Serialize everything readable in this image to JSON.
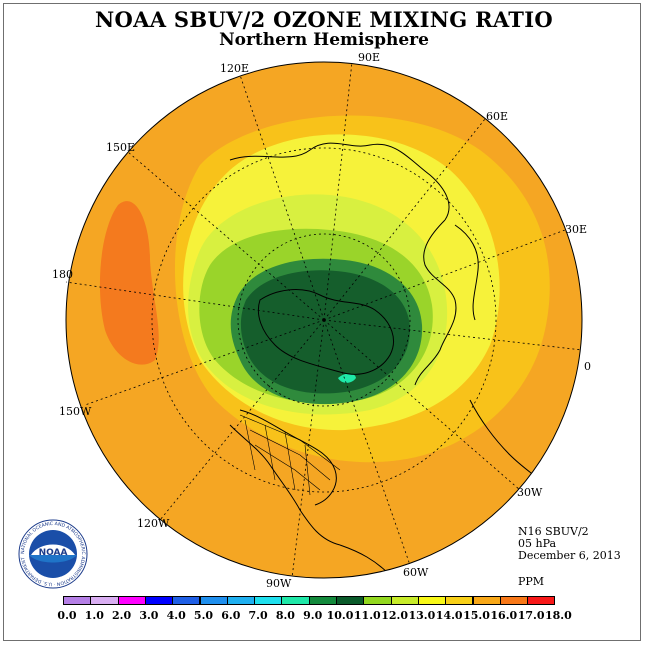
{
  "header": {
    "title": "NOAA SBUV/2 OZONE MIXING RATIO",
    "subtitle": "Northern Hemisphere"
  },
  "longitude_labels": [
    "90E",
    "60E",
    "30E",
    "0",
    "30W",
    "60W",
    "90W",
    "120W",
    "150W",
    "180",
    "150E",
    "120E"
  ],
  "info": {
    "satellite": "N16 SBUV/2",
    "level": "05 hPa",
    "date": "December 6, 2013",
    "units": "PPM"
  },
  "logo": {
    "text": "NOAA",
    "ring_text": "NATIONAL OCEANIC AND ATMOSPHERIC ADMINISTRATION · U.S. DEPARTMENT OF COMMERCE"
  },
  "colorbar": {
    "labels": [
      "0.0",
      "1.0",
      "2.0",
      "3.0",
      "4.0",
      "5.0",
      "6.0",
      "7.0",
      "8.0",
      "9.0",
      "10.0",
      "11.0",
      "12.0",
      "13.0",
      "14.0",
      "15.0",
      "16.0",
      "17.0",
      "18.0"
    ],
    "colors": [
      "#b57fe6",
      "#d9aef2",
      "#ff00ff",
      "#0000ff",
      "#1f5fe6",
      "#1f8fee",
      "#1fb0f0",
      "#1fe0ee",
      "#1fe8a8",
      "#138a3c",
      "#0a5a2a",
      "#93d81f",
      "#c8ec2a",
      "#f8f818",
      "#f8d018",
      "#f8a818",
      "#f87818",
      "#f81818",
      "#a0582a"
    ]
  },
  "map_colors": {
    "ocean_ring": "#f5a623",
    "band_14": "#f8c21a",
    "band_13": "#f6f23a",
    "band_12": "#d8f040",
    "band_11": "#9ad42a",
    "band_10": "#2f8a3c",
    "band_9": "#155e2c",
    "band_16": "#f47a1e"
  }
}
